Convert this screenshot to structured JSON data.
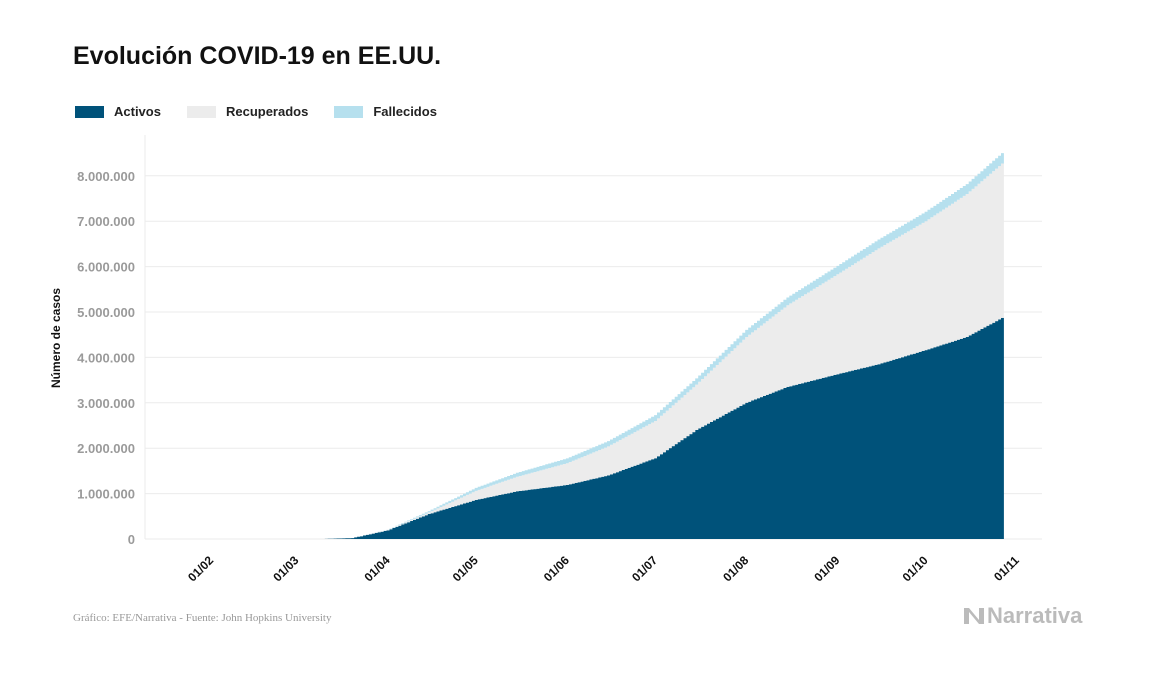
{
  "chart_data": {
    "type": "area",
    "stacked": true,
    "title": "Evolución COVID-19 en EE.UU.",
    "ylabel": "Número de casos",
    "xlabel": "",
    "ylim": [
      0,
      8500000
    ],
    "yticks": [
      0,
      1000000,
      2000000,
      3000000,
      4000000,
      5000000,
      6000000,
      7000000,
      8000000
    ],
    "ytick_labels": [
      "0",
      "1.000.000",
      "2.000.000",
      "3.000.000",
      "4.000.000",
      "5.000.000",
      "6.000.000",
      "7.000.000",
      "8.000.000"
    ],
    "xlim": [
      "2020-01-10",
      "2020-11-08"
    ],
    "xticks": [
      "2020-02-01",
      "2020-03-01",
      "2020-04-01",
      "2020-05-01",
      "2020-06-01",
      "2020-07-01",
      "2020-08-01",
      "2020-09-01",
      "2020-10-01",
      "2020-11-01"
    ],
    "xtick_labels": [
      "01/02",
      "01/03",
      "01/04",
      "01/05",
      "01/06",
      "01/07",
      "01/08",
      "01/09",
      "01/10",
      "01/11"
    ],
    "grid": true,
    "legend_position": "top-left",
    "dates": [
      "2020-03-10",
      "2020-03-20",
      "2020-04-01",
      "2020-04-15",
      "2020-05-01",
      "2020-05-15",
      "2020-06-01",
      "2020-06-15",
      "2020-07-01",
      "2020-07-15",
      "2020-08-01",
      "2020-08-15",
      "2020-09-01",
      "2020-09-15",
      "2020-10-01",
      "2020-10-15",
      "2020-10-27"
    ],
    "series": [
      {
        "name": "Activos",
        "color": "#00527a",
        "values": [
          0,
          20000,
          190000,
          550000,
          860000,
          1050000,
          1190000,
          1400000,
          1780000,
          2400000,
          3000000,
          3350000,
          3630000,
          3850000,
          4160000,
          4450000,
          4870000
        ]
      },
      {
        "name": "Recuperados",
        "color": "#ececec",
        "values": [
          0,
          500,
          10000,
          35000,
          200000,
          320000,
          480000,
          640000,
          820000,
          1000000,
          1450000,
          1800000,
          2200000,
          2550000,
          2840000,
          3150000,
          3400000
        ]
      },
      {
        "name": "Fallecidos",
        "color": "#b6e0ee",
        "values": [
          0,
          300,
          5000,
          30000,
          65000,
          88000,
          105000,
          116000,
          128000,
          138000,
          155000,
          170000,
          185000,
          196000,
          207000,
          218000,
          230000
        ]
      }
    ]
  },
  "footer": {
    "source": "Gráfico: EFE/Narrativa - Fuente: John Hopkins University",
    "logo": "Narrativa"
  }
}
